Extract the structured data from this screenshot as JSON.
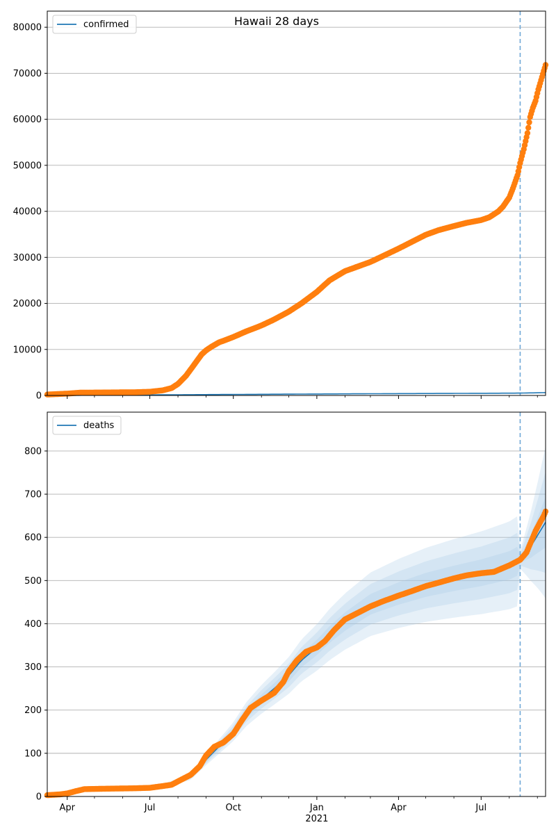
{
  "figure": {
    "title": "Hawaii 28 days"
  },
  "colors": {
    "observed": "#ff7f0e",
    "model": "#1f77b4",
    "band": "#a6c8e6",
    "vline": "#6fa8d6",
    "grid": "#b0b0b0"
  },
  "x_axis": {
    "start": "2020-03-10",
    "end": "2021-09-10",
    "major_ticks": [
      {
        "date": "2020-04-01",
        "label": "Apr"
      },
      {
        "date": "2020-07-01",
        "label": "Jul"
      },
      {
        "date": "2020-10-01",
        "label": "Oct"
      },
      {
        "date": "2021-01-01",
        "label": "Jan"
      },
      {
        "date": "2021-04-01",
        "label": "Apr"
      },
      {
        "date": "2021-07-01",
        "label": "Jul"
      }
    ],
    "year_label": {
      "date": "2021-01-01",
      "label": "2021"
    },
    "minor_ticks": [
      "2020-05-01",
      "2020-06-01",
      "2020-08-01",
      "2020-09-01",
      "2020-11-01",
      "2020-12-01",
      "2021-02-01",
      "2021-03-01",
      "2021-05-01",
      "2021-06-01",
      "2021-08-01",
      "2021-09-01"
    ],
    "forecast_start": "2021-08-13"
  },
  "chart_data": [
    {
      "type": "scatter",
      "legend": "confirmed",
      "legend_position": "top-left",
      "grid": "horizontal",
      "ylim": [
        0,
        83500
      ],
      "yticks": [
        0,
        10000,
        20000,
        30000,
        40000,
        50000,
        60000,
        70000,
        80000
      ],
      "observed": {
        "x": [
          "2020-03-10",
          "2020-04-01",
          "2020-04-15",
          "2020-05-15",
          "2020-06-15",
          "2020-07-01",
          "2020-07-15",
          "2020-07-25",
          "2020-08-01",
          "2020-08-10",
          "2020-08-20",
          "2020-08-27",
          "2020-09-01",
          "2020-09-07",
          "2020-09-15",
          "2020-10-01",
          "2020-10-15",
          "2020-11-01",
          "2020-11-15",
          "2020-12-01",
          "2020-12-15",
          "2021-01-01",
          "2021-01-15",
          "2021-02-01",
          "2021-02-15",
          "2021-03-01",
          "2021-03-15",
          "2021-04-01",
          "2021-04-15",
          "2021-05-01",
          "2021-05-15",
          "2021-06-01",
          "2021-06-15",
          "2021-07-01",
          "2021-07-10",
          "2021-07-20",
          "2021-07-25",
          "2021-08-01",
          "2021-08-05",
          "2021-08-10",
          "2021-08-13",
          "2021-08-17",
          "2021-08-21",
          "2021-08-24",
          "2021-08-27",
          "2021-08-30",
          "2021-09-02",
          "2021-09-05",
          "2021-09-08",
          "2021-09-10"
        ],
        "y": [
          200,
          400,
          600,
          650,
          700,
          800,
          1100,
          1600,
          2500,
          4300,
          7000,
          8900,
          9800,
          10600,
          11500,
          12700,
          13900,
          15200,
          16500,
          18200,
          20000,
          22500,
          25000,
          27000,
          28000,
          29000,
          30300,
          31900,
          33300,
          34900,
          35900,
          36800,
          37500,
          38100,
          38700,
          40000,
          41000,
          43000,
          45000,
          47800,
          50500,
          53500,
          57000,
          60500,
          62500,
          64000,
          66500,
          68500,
          70500,
          71800
        ]
      },
      "model": {
        "x": [
          "2020-03-10",
          "2020-07-01",
          "2020-10-01",
          "2021-01-01",
          "2021-04-01",
          "2021-07-01",
          "2021-08-13",
          "2021-09-10"
        ],
        "y": [
          0,
          120,
          220,
          320,
          400,
          470,
          510,
          620
        ]
      }
    },
    {
      "type": "scatter",
      "legend": "deaths",
      "legend_position": "top-left",
      "grid": "horizontal",
      "ylim": [
        0,
        890
      ],
      "yticks": [
        0,
        100,
        200,
        300,
        400,
        500,
        600,
        700,
        800
      ],
      "observed": {
        "x": [
          "2020-03-10",
          "2020-03-25",
          "2020-04-01",
          "2020-04-10",
          "2020-04-20",
          "2020-05-15",
          "2020-06-15",
          "2020-07-01",
          "2020-07-15",
          "2020-07-25",
          "2020-08-01",
          "2020-08-15",
          "2020-08-25",
          "2020-09-01",
          "2020-09-10",
          "2020-09-20",
          "2020-10-01",
          "2020-10-10",
          "2020-10-20",
          "2020-11-01",
          "2020-11-15",
          "2020-11-25",
          "2020-12-01",
          "2020-12-10",
          "2020-12-20",
          "2021-01-01",
          "2021-01-10",
          "2021-01-20",
          "2021-02-01",
          "2021-02-15",
          "2021-03-01",
          "2021-03-15",
          "2021-04-01",
          "2021-04-15",
          "2021-05-01",
          "2021-05-15",
          "2021-06-01",
          "2021-06-15",
          "2021-07-01",
          "2021-07-15",
          "2021-08-01",
          "2021-08-13",
          "2021-08-20",
          "2021-08-25",
          "2021-08-30",
          "2021-09-04",
          "2021-09-08",
          "2021-09-10"
        ],
        "y": [
          3,
          5,
          7,
          12,
          17,
          18,
          19,
          20,
          24,
          27,
          35,
          50,
          70,
          95,
          115,
          125,
          145,
          175,
          205,
          222,
          240,
          265,
          290,
          315,
          335,
          345,
          360,
          385,
          410,
          425,
          440,
          452,
          465,
          475,
          487,
          495,
          505,
          512,
          517,
          520,
          535,
          548,
          565,
          590,
          615,
          635,
          650,
          660
        ]
      },
      "model": {
        "x": [
          "2020-03-10",
          "2020-04-15",
          "2020-06-01",
          "2020-07-15",
          "2020-08-15",
          "2020-09-01",
          "2020-09-15",
          "2020-10-01",
          "2020-10-15",
          "2020-11-01",
          "2020-11-15",
          "2020-12-01",
          "2020-12-15",
          "2021-01-01",
          "2021-01-15",
          "2021-02-01",
          "2021-03-01",
          "2021-04-01",
          "2021-05-01",
          "2021-06-01",
          "2021-07-01",
          "2021-08-01",
          "2021-08-13",
          "2021-08-25",
          "2021-09-10"
        ],
        "y": [
          3,
          12,
          18,
          25,
          45,
          85,
          115,
          150,
          190,
          225,
          250,
          280,
          315,
          345,
          375,
          405,
          445,
          470,
          490,
          505,
          518,
          535,
          548,
          580,
          635
        ]
      },
      "band_widths": [
        0.06,
        0.12,
        0.19
      ],
      "band_widths_forecast_end": [
        0.05,
        0.1,
        0.15
      ]
    }
  ]
}
